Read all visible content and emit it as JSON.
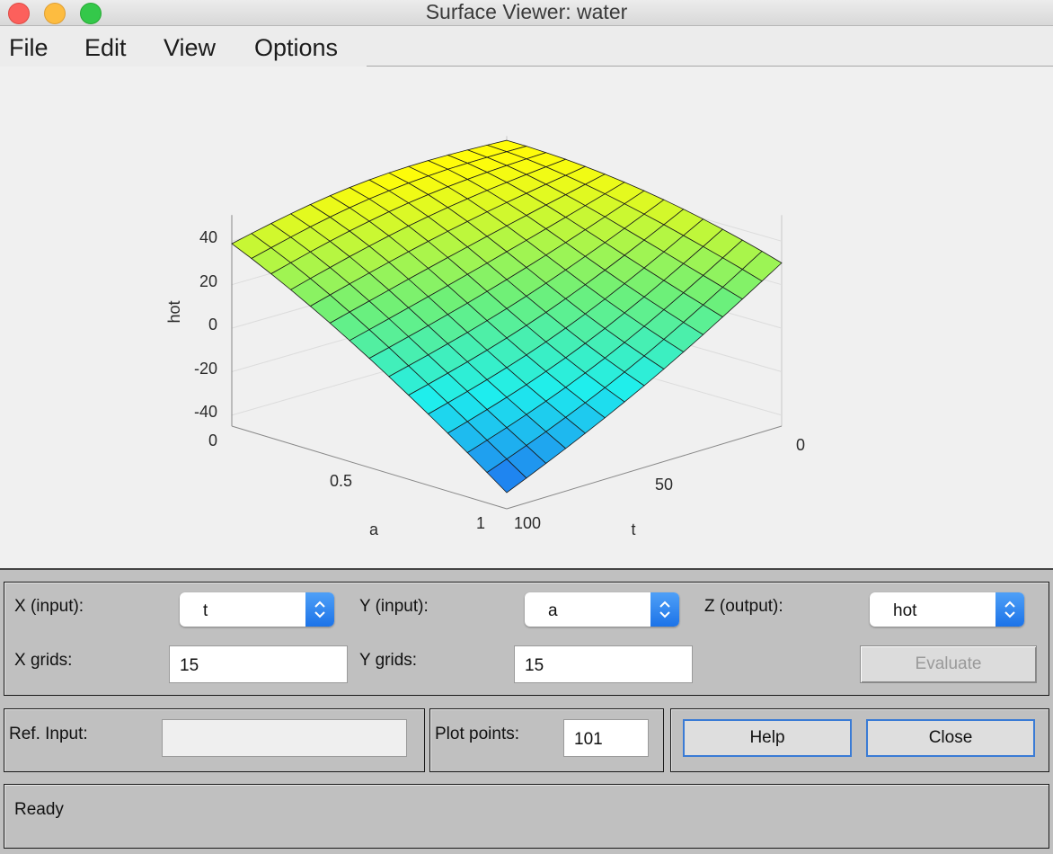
{
  "window": {
    "title": "Surface Viewer: water"
  },
  "menu": [
    "File",
    "Edit",
    "View",
    "Options"
  ],
  "plot": {
    "zlabel": "hot",
    "xlabel": "t",
    "ylabel": "a",
    "z_ticks": [
      "40",
      "20",
      "0",
      "-20",
      "-40"
    ],
    "a_ticks": [
      "0",
      "0.5",
      "1"
    ],
    "t_ticks": [
      "0",
      "50",
      "100"
    ]
  },
  "controls": {
    "x_input_label": "X (input):",
    "x_input_value": "t",
    "y_input_label": "Y (input):",
    "y_input_value": "a",
    "z_output_label": "Z (output):",
    "z_output_value": "hot",
    "x_grids_label": "X grids:",
    "x_grids_value": "15",
    "y_grids_label": "Y grids:",
    "y_grids_value": "15",
    "evaluate_label": "Evaluate",
    "ref_input_label": "Ref. Input:",
    "ref_input_value": "",
    "plot_points_label": "Plot points:",
    "plot_points_value": "101",
    "help_label": "Help",
    "close_label": "Close"
  },
  "status": {
    "text": "Ready"
  },
  "colors": {
    "surface_low": "#1f6ff0",
    "surface_mid": "#1ef3ee",
    "surface_high": "#fffb0a",
    "stepper": "#1c73e8"
  },
  "chart_data": {
    "type": "surface",
    "xlabel": "t",
    "ylabel": "a",
    "zlabel": "hot",
    "xlim": [
      0,
      100
    ],
    "ylim": [
      0,
      1
    ],
    "zlim": [
      -40,
      50
    ],
    "grid": true
  }
}
